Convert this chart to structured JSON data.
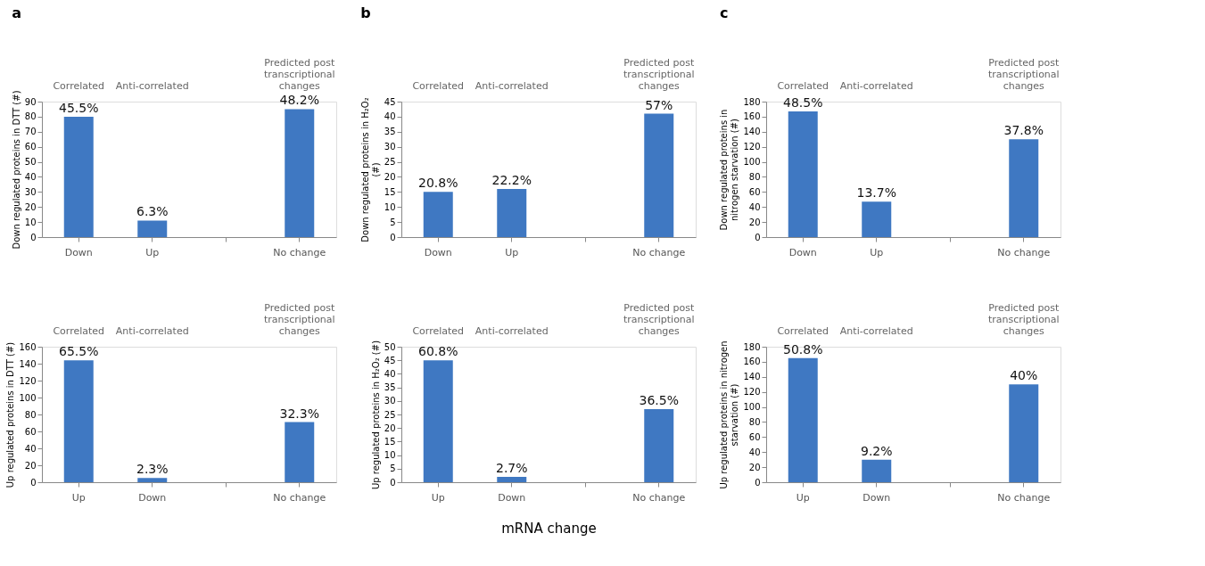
{
  "chart_data": [
    {
      "type": "bar",
      "title": "a",
      "ylabel": "Down regulated proteins in DTT (#)",
      "categories": [
        "Down",
        "Up",
        null,
        "No change"
      ],
      "values": [
        80,
        11,
        null,
        85
      ],
      "color": "#3f78c2",
      "ylim": [
        0,
        90
      ],
      "yticks": [
        0,
        10,
        20,
        30,
        40,
        50,
        60,
        70,
        80,
        90
      ],
      "annotations": [
        "Correlated",
        "Anti-correlated",
        "Predicted post transcriptional changes",
        {
          "text": "45.5%",
          "x": "Down",
          "y": 80
        },
        {
          "text": "6.3%",
          "x": "Up",
          "y": 11
        },
        {
          "text": "48.2%",
          "x": "No change",
          "y": 85
        }
      ]
    },
    {
      "type": "bar",
      "ylabel": "Up regulated proteins in DTT (#)",
      "categories": [
        "Up",
        "Down",
        null,
        "No change"
      ],
      "values": [
        144,
        5,
        null,
        71
      ],
      "color": "#3f78c2",
      "ylim": [
        0,
        160
      ],
      "yticks": [
        0,
        20,
        40,
        60,
        80,
        100,
        120,
        140,
        160
      ],
      "annotations": [
        "Correlated",
        "Anti-correlated",
        "Predicted post transcriptional changes",
        {
          "text": "65.5%",
          "x": "Up",
          "y": 144
        },
        {
          "text": "2.3%",
          "x": "Down",
          "y": 5
        },
        {
          "text": "32.3%",
          "x": "No change",
          "y": 71
        }
      ]
    },
    {
      "type": "bar",
      "title": "b",
      "ylabel": "Down regulated proteins in H₂O₂ (#)",
      "categories": [
        "Down",
        "Up",
        null,
        "No change"
      ],
      "values": [
        15,
        16,
        null,
        41
      ],
      "color": "#3f78c2",
      "ylim": [
        0,
        45
      ],
      "yticks": [
        0,
        5,
        10,
        15,
        20,
        25,
        30,
        35,
        40,
        45
      ],
      "annotations": [
        "Correlated",
        "Anti-correlated",
        "Predicted post transcriptional changes",
        {
          "text": "20.8%",
          "x": "Down",
          "y": 15
        },
        {
          "text": "22.2%",
          "x": "Up",
          "y": 16
        },
        {
          "text": "57%",
          "x": "No change",
          "y": 41
        }
      ]
    },
    {
      "type": "bar",
      "ylabel": "Up regulated proteins in H₂O₂ (#)",
      "xlabel": "mRNA change",
      "categories": [
        "Up",
        "Down",
        null,
        "No change"
      ],
      "values": [
        45,
        2,
        null,
        27
      ],
      "color": "#3f78c2",
      "ylim": [
        0,
        50
      ],
      "yticks": [
        0,
        5,
        10,
        15,
        20,
        25,
        30,
        35,
        40,
        45,
        50
      ],
      "annotations": [
        "Correlated",
        "Anti-correlated",
        "Predicted post transcriptional changes",
        {
          "text": "60.8%",
          "x": "Up",
          "y": 45
        },
        {
          "text": "2.7%",
          "x": "Down",
          "y": 2
        },
        {
          "text": "36.5%",
          "x": "No change",
          "y": 27
        }
      ]
    },
    {
      "type": "bar",
      "title": "c",
      "ylabel": "Down regulated proteins in nitrogen starvation (#)",
      "categories": [
        "Down",
        "Up",
        null,
        "No change"
      ],
      "values": [
        167,
        47,
        null,
        130
      ],
      "color": "#3f78c2",
      "ylim": [
        0,
        180
      ],
      "yticks": [
        0,
        20,
        40,
        60,
        80,
        100,
        120,
        140,
        160,
        180
      ],
      "annotations": [
        "Correlated",
        "Anti-correlated",
        "Predicted post transcriptional changes",
        {
          "text": "48.5%",
          "x": "Down",
          "y": 167
        },
        {
          "text": "13.7%",
          "x": "Up",
          "y": 47
        },
        {
          "text": "37.8%",
          "x": "No change",
          "y": 130
        }
      ]
    },
    {
      "type": "bar",
      "ylabel": "Up regulated proteins in nitrogen starvation (#)",
      "categories": [
        "Up",
        "Down",
        null,
        "No change"
      ],
      "values": [
        165,
        30,
        null,
        130
      ],
      "color": "#3f78c2",
      "ylim": [
        0,
        180
      ],
      "yticks": [
        0,
        20,
        40,
        60,
        80,
        100,
        120,
        140,
        160,
        180
      ],
      "annotations": [
        "Correlated",
        "Anti-correlated",
        "Predicted post transcriptional changes",
        {
          "text": "50.8%",
          "x": "Up",
          "y": 165
        },
        {
          "text": "9.2%",
          "x": "Down",
          "y": 30
        },
        {
          "text": "40%",
          "x": "No change",
          "y": 130
        }
      ]
    }
  ]
}
